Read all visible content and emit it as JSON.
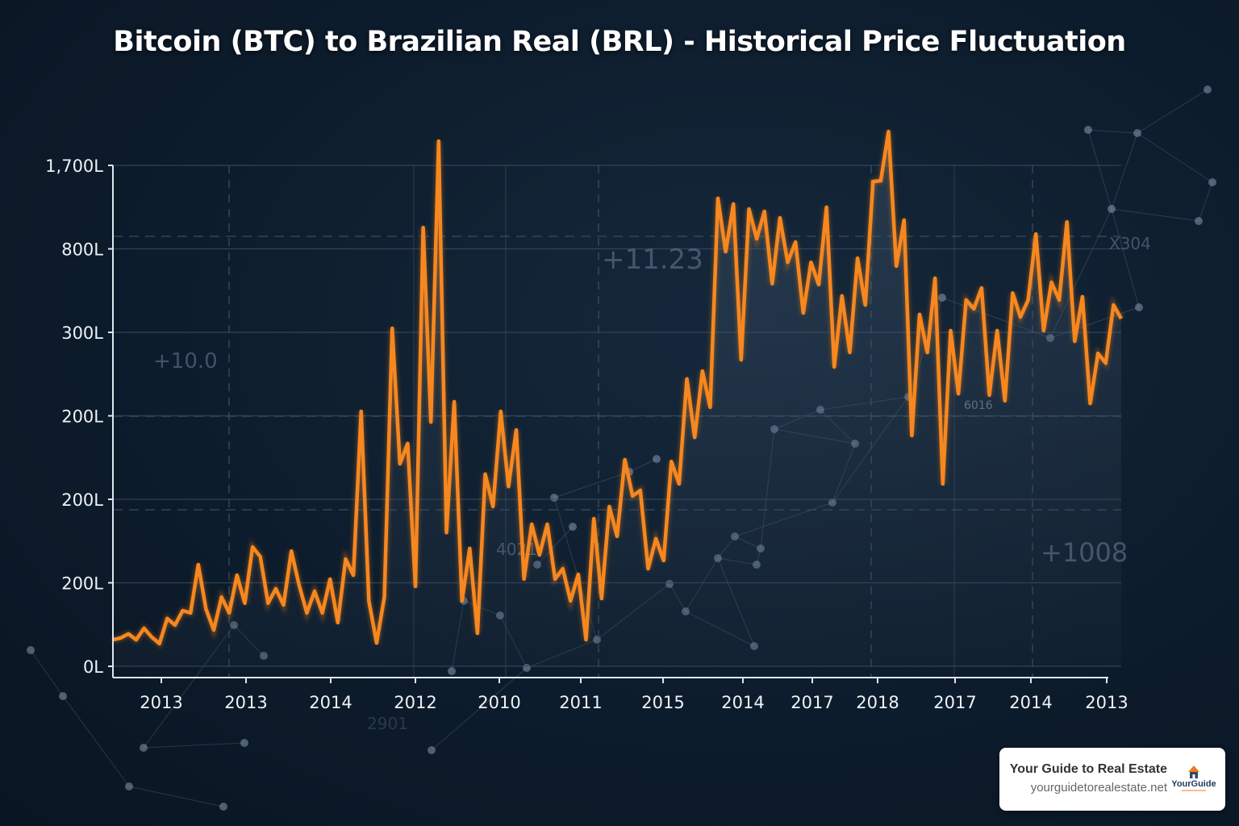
{
  "chart_data": {
    "type": "line",
    "title": "Bitcoin (BTC) to Brazilian Real (BRL) - Historical Price Fluctuation",
    "xlabel": "",
    "ylabel": "",
    "x_tick_labels": [
      "2013",
      "2013",
      "2014",
      "2012",
      "2010",
      "2011",
      "2015",
      "2014",
      "2017",
      "2018",
      "2017",
      "2014",
      "2013"
    ],
    "y_tick_labels": [
      "0L",
      "200L",
      "200L",
      "200L",
      "300L",
      "800L",
      "1,700L"
    ],
    "ylim": [
      0,
      1700
    ],
    "grid": true,
    "legend": "none",
    "series": [
      {
        "color": "#f7871f",
        "values": [
          90,
          96,
          110,
          90,
          129,
          99,
          77,
          162,
          140,
          189,
          181,
          345,
          194,
          123,
          235,
          181,
          309,
          214,
          405,
          372,
          214,
          263,
          208,
          391,
          276,
          181,
          255,
          181,
          296,
          148,
          364,
          309,
          865,
          222,
          79,
          235,
          1147,
          687,
          756,
          271,
          1489,
          829,
          1782,
          454,
          898,
          222,
          400,
          112,
          652,
          542,
          865,
          610,
          802,
          296,
          482,
          378,
          482,
          296,
          331,
          222,
          312,
          90,
          501,
          230,
          542,
          441,
          701,
          578,
          597,
          331,
          433,
          359,
          695,
          619,
          975,
          777,
          1002,
          879,
          1588,
          1407,
          1569,
          1040,
          1552,
          1451,
          1544,
          1298,
          1522,
          1371,
          1440,
          1199,
          1371,
          1295,
          1558,
          1016,
          1257,
          1065,
          1385,
          1226,
          1645,
          1648,
          1815,
          1358,
          1514,
          783,
          1194,
          1065,
          1317,
          619,
          1139,
          925,
          1243,
          1213,
          1284,
          920,
          1139,
          901,
          1267,
          1185,
          1243,
          1467,
          1139,
          1303,
          1243,
          1508,
          1103,
          1254,
          892,
          1062,
          1029,
          1226,
          1180
        ]
      }
    ],
    "annotations": [
      "+10.0",
      "+11.23",
      "+1008",
      "4021",
      "6016",
      "X304",
      "2901"
    ]
  },
  "colors": {
    "line": "#f7871f",
    "background": "#0d1c2c",
    "grid": "#3a4c60"
  },
  "badge": {
    "title": "Your Guide to Real Estate",
    "url": "yourguidetorealestate.net",
    "logo_text": "YourGuide",
    "logo_icon": "house-icon"
  }
}
